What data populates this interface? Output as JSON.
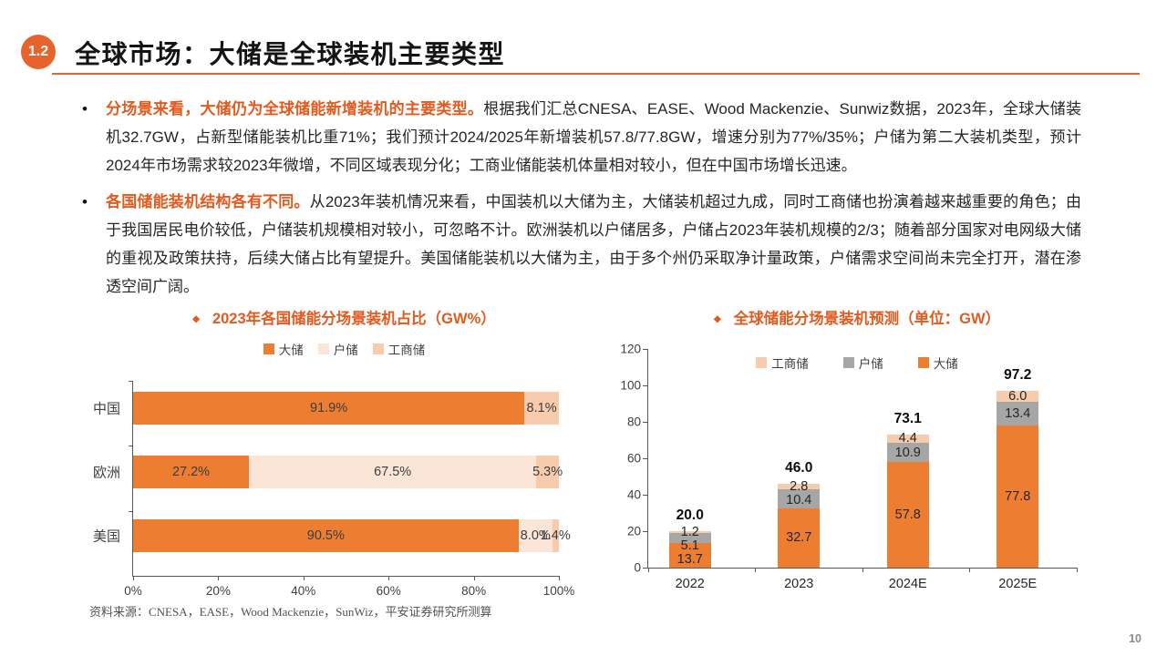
{
  "slide": {
    "badge": "1.2",
    "title": "全球市场：大储是全球装机主要类型",
    "source_note": "资料来源：CNESA，EASE，Wood Mackenzie，SunWiz，平安证券研究所测算",
    "page_number": "10"
  },
  "bullets": [
    {
      "marker": "•",
      "lead": "分场景来看，大储仍为全球储能新增装机的主要类型。",
      "body": "根据我们汇总CNESA、EASE、Wood Mackenzie、Sunwiz数据，2023年，全球大储装机32.7GW，占新型储能装机比重71%；我们预计2024/2025年新增装机57.8/77.8GW，增速分别为77%/35%；户储为第二大装机类型，预计2024年市场需求较2023年微增，不同区域表现分化；工商业储能装机体量相对较小，但在中国市场增长迅速。"
    },
    {
      "marker": "•",
      "lead": "各国储能装机结构各有不同。",
      "body": "从2023年装机情况来看，中国装机以大储为主，大储装机超过九成，同时工商储也扮演着越来越重要的角色；由于我国居民电价较低，户储装机规模相对较小，可忽略不计。欧洲装机以户储居多，户储占2023年装机规模的2/3；随着部分国家对电网级大储的重视及政策扶持，后续大储占比有望提升。美国储能装机以大储为主，由于多个州仍采取净计量政策，户储需求空间尚未完全打开，潜在渗透空间广阔。"
    }
  ],
  "colors": {
    "accent_orange": "#E45A1E",
    "bar_orange": "#ED7D31",
    "bar_peach": "#F8CBAD",
    "bar_light_peach": "#FBE5D6",
    "bar_gray": "#A6A6A6",
    "axis_gray": "#595959"
  },
  "chart_data": [
    {
      "type": "bar",
      "orientation": "horizontal-stacked",
      "marker": "◆",
      "title": "2023年各国储能分场景装机占比（GW%）",
      "categories": [
        "中国",
        "欧洲",
        "美国"
      ],
      "series": [
        {
          "name": "大储",
          "color": "#ED7D31",
          "values": [
            91.9,
            27.2,
            90.5
          ]
        },
        {
          "name": "户储",
          "color": "#FBE5D6",
          "values": [
            0,
            67.5,
            8.0
          ]
        },
        {
          "name": "工商储",
          "color": "#F8CBAD",
          "values": [
            8.1,
            5.3,
            1.4
          ]
        }
      ],
      "value_suffix": "%",
      "xlim": [
        0,
        100
      ],
      "xticks": [
        "0%",
        "20%",
        "40%",
        "60%",
        "80%",
        "100%"
      ],
      "legend": [
        {
          "label": "大储",
          "color": "#ED7D31"
        },
        {
          "label": "户储",
          "color": "#FBE5D6"
        },
        {
          "label": "工商储",
          "color": "#F8CBAD"
        }
      ],
      "legend_position": "top",
      "grid": false
    },
    {
      "type": "bar",
      "orientation": "vertical-stacked",
      "marker": "◆",
      "title": "全球储能分场景装机预测（单位：GW）",
      "categories": [
        "2022",
        "2023",
        "2024E",
        "2025E"
      ],
      "series": [
        {
          "name": "大储",
          "color": "#ED7D31",
          "values": [
            13.7,
            32.7,
            57.8,
            77.8
          ]
        },
        {
          "name": "户储",
          "color": "#A6A6A6",
          "values": [
            5.1,
            10.4,
            10.9,
            13.4
          ]
        },
        {
          "name": "工商储",
          "color": "#F8CBAD",
          "values": [
            1.2,
            2.8,
            4.4,
            6.0
          ]
        }
      ],
      "totals": [
        20.0,
        46.0,
        73.1,
        97.2
      ],
      "ylim": [
        0,
        120
      ],
      "yticks": [
        0,
        20,
        40,
        60,
        80,
        100,
        120
      ],
      "legend": [
        {
          "label": "工商储",
          "color": "#F8CBAD"
        },
        {
          "label": "户储",
          "color": "#A6A6A6"
        },
        {
          "label": "大储",
          "color": "#ED7D31"
        }
      ],
      "legend_position": "top-inside",
      "grid": false
    }
  ]
}
